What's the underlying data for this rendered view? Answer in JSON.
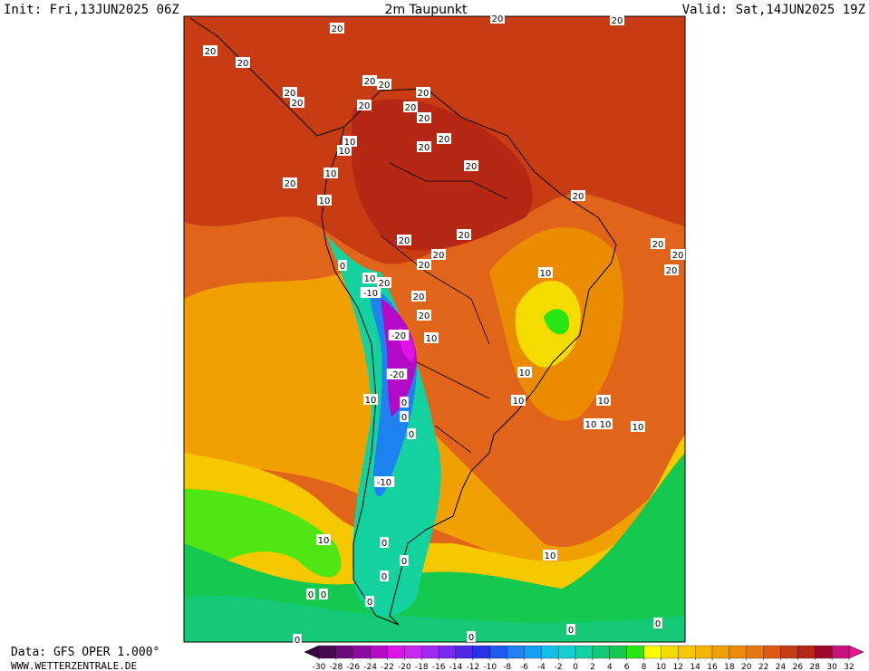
{
  "map": {
    "init": "Init: Fri,13JUN2025 06Z",
    "title": "2m Taupunkt",
    "valid": "Valid: Sat,14JUN2025 19Z",
    "source": "Data: GFS OPER 1.000°",
    "website": "WWW.WETTERZENTRALE.DE",
    "contour_labels": [
      20,
      20,
      20,
      20,
      20,
      20,
      20,
      20,
      20,
      20,
      20,
      20,
      20,
      20,
      20,
      20,
      20,
      20,
      20,
      20,
      20,
      20,
      20,
      20,
      20,
      20,
      20,
      20,
      10,
      10,
      10,
      10,
      10,
      10,
      10,
      10,
      10,
      10,
      10,
      10,
      10,
      10,
      10,
      10,
      0,
      0,
      0,
      0,
      0,
      0,
      0,
      0,
      0,
      0,
      0,
      0,
      0,
      0,
      -10,
      -10,
      -20,
      -20
    ],
    "colorbar": {
      "ticks": [
        -30,
        -28,
        -26,
        -24,
        -22,
        -20,
        -18,
        -16,
        -14,
        -12,
        -10,
        -8,
        -6,
        -4,
        -2,
        0,
        2,
        4,
        6,
        8,
        10,
        12,
        14,
        16,
        18,
        20,
        22,
        24,
        26,
        28,
        30,
        32
      ],
      "colors": [
        "#4b0a50",
        "#6e0a78",
        "#8c0aa0",
        "#b40ac8",
        "#dc14e6",
        "#c828f0",
        "#a028f0",
        "#7828f0",
        "#5028e6",
        "#2832e6",
        "#1e5af0",
        "#1e82f0",
        "#14a0f0",
        "#14beeb",
        "#14d2d2",
        "#14d2a0",
        "#14c878",
        "#14c850",
        "#28e614",
        "#ffff00",
        "#f5dc00",
        "#f5c800",
        "#f5b400",
        "#f0a000",
        "#eb8c00",
        "#e67814",
        "#dc5a14",
        "#c83c14",
        "#b42814",
        "#a00a28",
        "#c8147a"
      ],
      "under_color": "#3c0040",
      "over_color": "#e61490"
    }
  }
}
